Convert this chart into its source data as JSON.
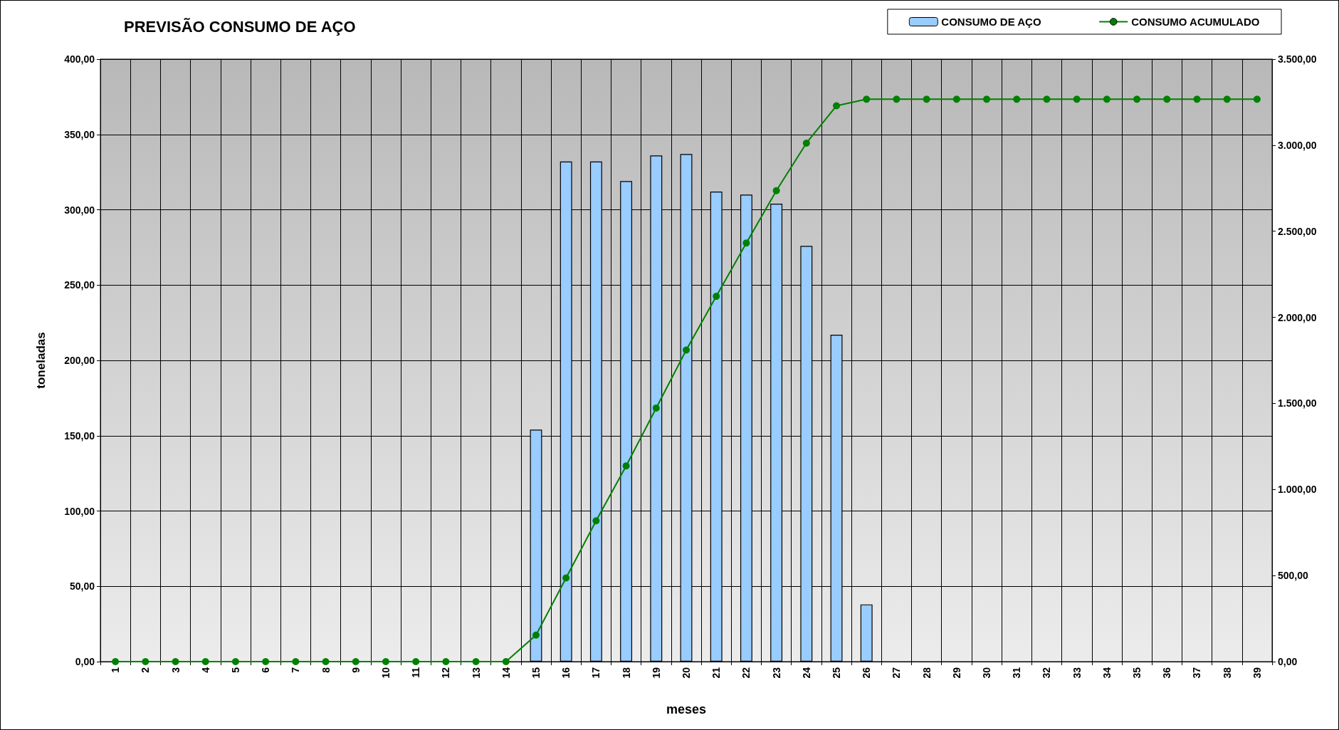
{
  "chart_data": {
    "type": "bar",
    "title": "PREVISÃO CONSUMO DE AÇO",
    "xlabel": "meses",
    "ylabel": "toneladas",
    "categories": [
      "1",
      "2",
      "3",
      "4",
      "5",
      "6",
      "7",
      "8",
      "9",
      "10",
      "11",
      "12",
      "13",
      "14",
      "15",
      "16",
      "17",
      "18",
      "19",
      "20",
      "21",
      "22",
      "23",
      "24",
      "25",
      "26",
      "27",
      "28",
      "29",
      "30",
      "31",
      "32",
      "33",
      "34",
      "35",
      "36",
      "37",
      "38",
      "39"
    ],
    "series": [
      {
        "name": "CONSUMO DE AÇO",
        "color": "#99ccff",
        "values": [
          0,
          0,
          0,
          0,
          0,
          0,
          0,
          0,
          0,
          0,
          0,
          0,
          0,
          0,
          154,
          332,
          332,
          319,
          336,
          337,
          312,
          310,
          304,
          276,
          217,
          38,
          0,
          0,
          0,
          0,
          0,
          0,
          0,
          0,
          0,
          0,
          0,
          0,
          0
        ]
      },
      {
        "name": "CONSUMO ACUMULADO",
        "type": "line",
        "axis": "y2",
        "color": "#008000",
        "marker": "circle",
        "line_style": "solid",
        "values": [
          0,
          0,
          0,
          0,
          0,
          0,
          0,
          0,
          0,
          0,
          0,
          0,
          0,
          0,
          154,
          486,
          818,
          1137,
          1473,
          1810,
          2122,
          2432,
          2736,
          3012,
          3229,
          3267,
          3267,
          3267,
          3267,
          3267,
          3267,
          3267,
          3267,
          3267,
          3267,
          3267,
          3267,
          3267,
          3267
        ]
      }
    ],
    "ylim": [
      0,
      400
    ],
    "yticks": [
      {
        "value": 0,
        "label": "0,00"
      },
      {
        "value": 50,
        "label": "50,00"
      },
      {
        "value": 100,
        "label": "100,00"
      },
      {
        "value": 150,
        "label": "150,00"
      },
      {
        "value": 200,
        "label": "200,00"
      },
      {
        "value": 250,
        "label": "250,00"
      },
      {
        "value": 300,
        "label": "300,00"
      },
      {
        "value": 350,
        "label": "350,00"
      },
      {
        "value": 400,
        "label": "400,00"
      }
    ],
    "y2lim": [
      0,
      3500
    ],
    "y2ticks": [
      {
        "value": 0,
        "label": "0,00"
      },
      {
        "value": 500,
        "label": "500,00"
      },
      {
        "value": 1000,
        "label": "1.000,00"
      },
      {
        "value": 1500,
        "label": "1.500,00"
      },
      {
        "value": 2000,
        "label": "2.000,00"
      },
      {
        "value": 2500,
        "label": "2.500,00"
      },
      {
        "value": 3000,
        "label": "3.000,00"
      },
      {
        "value": 3500,
        "label": "3.500,00"
      }
    ],
    "grid": true,
    "legend": "top right"
  }
}
